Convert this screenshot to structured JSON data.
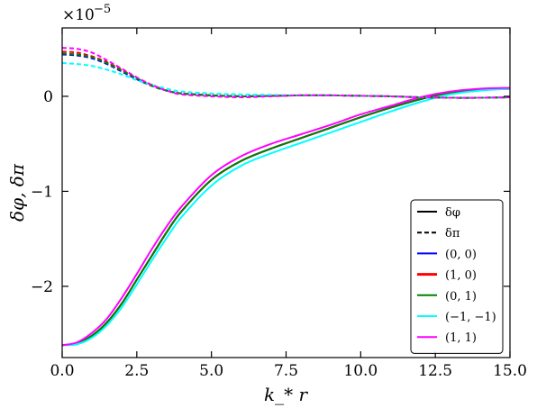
{
  "chart_data": {
    "type": "line",
    "xlabel": "k_* r",
    "ylabel": "δφ, δπ",
    "y_multiplier": "×10",
    "y_multiplier_exp": "−5",
    "xlim": [
      0,
      15
    ],
    "ylim": [
      -2.75,
      0.72
    ],
    "y_scale_note": "values in units of 1e-5",
    "xticks": [
      0,
      2.5,
      5,
      7.5,
      10,
      12.5,
      15
    ],
    "xtick_labels": [
      "0.0",
      "2.5",
      "5.0",
      "7.5",
      "10.0",
      "12.5",
      "15.0"
    ],
    "yticks": [
      0,
      -1,
      -2
    ],
    "ytick_labels": [
      "0",
      "−1",
      "−2"
    ],
    "grid": false,
    "legend_placement": "lower-right",
    "legend": [
      {
        "label": "δφ",
        "style": "solid",
        "color": "#000000"
      },
      {
        "label": "δπ",
        "style": "dashed",
        "color": "#000000"
      },
      {
        "label": "(0, 0)",
        "style": "solid",
        "color": "#0000ff"
      },
      {
        "label": "(1, 0)",
        "style": "solid",
        "color": "#ff0000"
      },
      {
        "label": "(0, 1)",
        "style": "solid",
        "color": "#008000"
      },
      {
        "label": "(−1, −1)",
        "style": "solid",
        "color": "#00ffff"
      },
      {
        "label": "(1, 1)",
        "style": "solid",
        "color": "#ff00ff"
      }
    ],
    "x": [
      0,
      0.5,
      1,
      1.5,
      2,
      2.5,
      3,
      3.5,
      4,
      5,
      6,
      7,
      8,
      9,
      10,
      11,
      12,
      13,
      14,
      15
    ],
    "series": [
      {
        "name": "(0, 0) δφ",
        "color": "#0000ff",
        "style": "solid",
        "values": [
          -2.62,
          -2.6,
          -2.52,
          -2.38,
          -2.18,
          -1.93,
          -1.68,
          -1.43,
          -1.21,
          -0.88,
          -0.68,
          -0.55,
          -0.44,
          -0.33,
          -0.22,
          -0.12,
          -0.03,
          0.04,
          0.07,
          0.08
        ]
      },
      {
        "name": "(1, 0) δφ",
        "color": "#ff0000",
        "style": "solid",
        "values": [
          -2.62,
          -2.6,
          -2.52,
          -2.38,
          -2.18,
          -1.93,
          -1.68,
          -1.43,
          -1.21,
          -0.88,
          -0.68,
          -0.55,
          -0.44,
          -0.33,
          -0.22,
          -0.12,
          -0.03,
          0.04,
          0.07,
          0.08
        ]
      },
      {
        "name": "(0, 1) δφ",
        "color": "#008000",
        "style": "solid",
        "values": [
          -2.62,
          -2.6,
          -2.52,
          -2.38,
          -2.18,
          -1.93,
          -1.68,
          -1.43,
          -1.21,
          -0.88,
          -0.68,
          -0.55,
          -0.44,
          -0.33,
          -0.22,
          -0.12,
          -0.03,
          0.04,
          0.07,
          0.08
        ]
      },
      {
        "name": "(−1, −1) δφ",
        "color": "#00ffff",
        "style": "solid",
        "values": [
          -2.62,
          -2.61,
          -2.54,
          -2.41,
          -2.22,
          -1.98,
          -1.73,
          -1.49,
          -1.27,
          -0.94,
          -0.73,
          -0.6,
          -0.49,
          -0.38,
          -0.27,
          -0.16,
          -0.06,
          0.02,
          0.06,
          0.08
        ]
      },
      {
        "name": "(1, 1) δφ",
        "color": "#ff00ff",
        "style": "solid",
        "values": [
          -2.62,
          -2.59,
          -2.49,
          -2.34,
          -2.12,
          -1.87,
          -1.61,
          -1.37,
          -1.16,
          -0.83,
          -0.63,
          -0.5,
          -0.4,
          -0.3,
          -0.19,
          -0.1,
          -0.01,
          0.05,
          0.08,
          0.09
        ]
      },
      {
        "name": "(0, 0) δπ",
        "color": "#0000ff",
        "style": "dashed",
        "values": [
          0.44,
          0.43,
          0.4,
          0.34,
          0.26,
          0.18,
          0.11,
          0.06,
          0.03,
          0.01,
          0.0,
          0.005,
          0.01,
          0.01,
          0.005,
          0.0,
          -0.01,
          -0.015,
          -0.015,
          -0.01
        ]
      },
      {
        "name": "(1, 0) δπ",
        "color": "#ff0000",
        "style": "dashed",
        "values": [
          0.47,
          0.46,
          0.42,
          0.36,
          0.28,
          0.19,
          0.12,
          0.06,
          0.03,
          0.01,
          0.0,
          0.005,
          0.01,
          0.01,
          0.005,
          0.0,
          -0.01,
          -0.015,
          -0.015,
          -0.01
        ]
      },
      {
        "name": "(0, 1) δπ",
        "color": "#008000",
        "style": "dashed",
        "values": [
          0.45,
          0.44,
          0.41,
          0.35,
          0.27,
          0.19,
          0.11,
          0.06,
          0.03,
          0.01,
          0.0,
          0.005,
          0.01,
          0.01,
          0.005,
          0.0,
          -0.01,
          -0.015,
          -0.015,
          -0.01
        ]
      },
      {
        "name": "(−1, −1) δπ",
        "color": "#00ffff",
        "style": "dashed",
        "values": [
          0.35,
          0.34,
          0.32,
          0.28,
          0.23,
          0.17,
          0.12,
          0.08,
          0.05,
          0.03,
          0.02,
          0.015,
          0.01,
          0.01,
          0.005,
          0.0,
          -0.01,
          -0.015,
          -0.015,
          -0.01
        ]
      },
      {
        "name": "(1, 1) δπ",
        "color": "#ff00ff",
        "style": "dashed",
        "values": [
          0.51,
          0.5,
          0.46,
          0.38,
          0.29,
          0.2,
          0.12,
          0.06,
          0.02,
          0.0,
          -0.01,
          0.0,
          0.01,
          0.01,
          0.005,
          0.0,
          -0.01,
          -0.015,
          -0.015,
          -0.01
        ]
      }
    ]
  }
}
